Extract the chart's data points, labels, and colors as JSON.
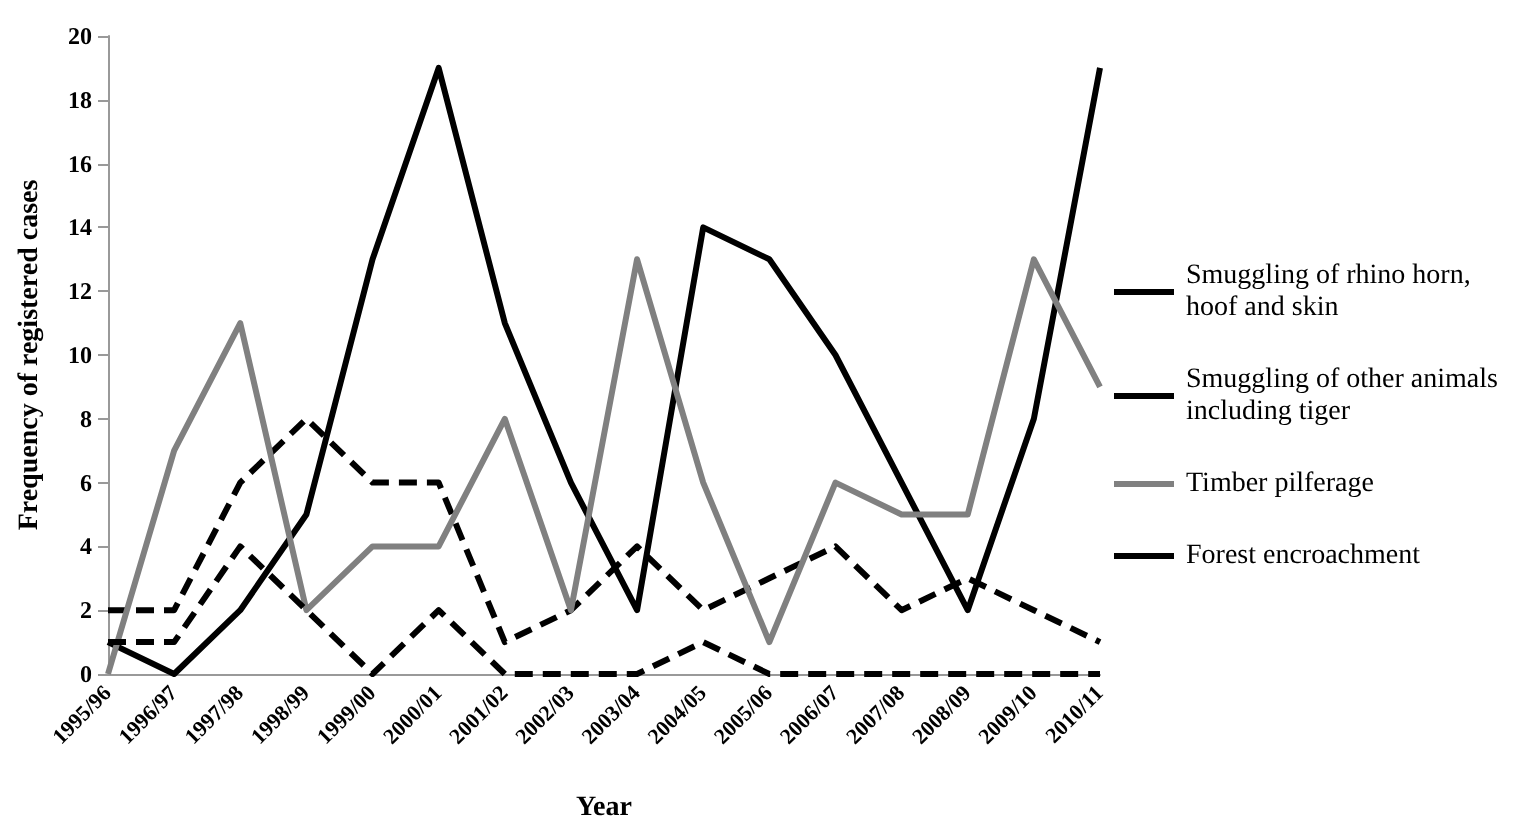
{
  "chart_data": {
    "type": "line",
    "xlabel": "Year",
    "ylabel": "Frequency of registered cases",
    "categories": [
      "1995/96",
      "1996/97",
      "1997/98",
      "1998/99",
      "1999/00",
      "2000/01",
      "2001/02",
      "2002/03",
      "2003/04",
      "2004/05",
      "2005/06",
      "2006/07",
      "2007/08",
      "2008/09",
      "2009/10",
      "2010/11"
    ],
    "series": [
      {
        "name": "Smuggling of rhino horn, hoof and skin",
        "color": "#000000",
        "line_style": "solid",
        "values": [
          1,
          0,
          2,
          5,
          13,
          19,
          11,
          6,
          2,
          14,
          13,
          10,
          6,
          2,
          8,
          19
        ]
      },
      {
        "name": "Smuggling of other animals including tiger",
        "color": "#000000",
        "line_style": "dashed",
        "values": [
          2,
          2,
          6,
          8,
          6,
          6,
          1,
          2,
          4,
          2,
          3,
          4,
          2,
          3,
          2,
          1
        ]
      },
      {
        "name": "Timber pilferage",
        "color": "#808080",
        "line_style": "solid",
        "values": [
          0,
          7,
          11,
          2,
          4,
          4,
          8,
          2,
          13,
          6,
          1,
          6,
          5,
          5,
          13,
          9
        ]
      },
      {
        "name": "Forest encroachment",
        "color": "#000000",
        "line_style": "dashed",
        "values": [
          1,
          1,
          4,
          2,
          0,
          2,
          0,
          0,
          0,
          1,
          0,
          0,
          0,
          0,
          0,
          0
        ]
      }
    ],
    "ylim": [
      0,
      20
    ],
    "yticks": [
      0,
      2,
      4,
      6,
      8,
      10,
      12,
      14,
      16,
      18,
      20
    ],
    "grid": false,
    "legend": "right",
    "marker": "none"
  }
}
